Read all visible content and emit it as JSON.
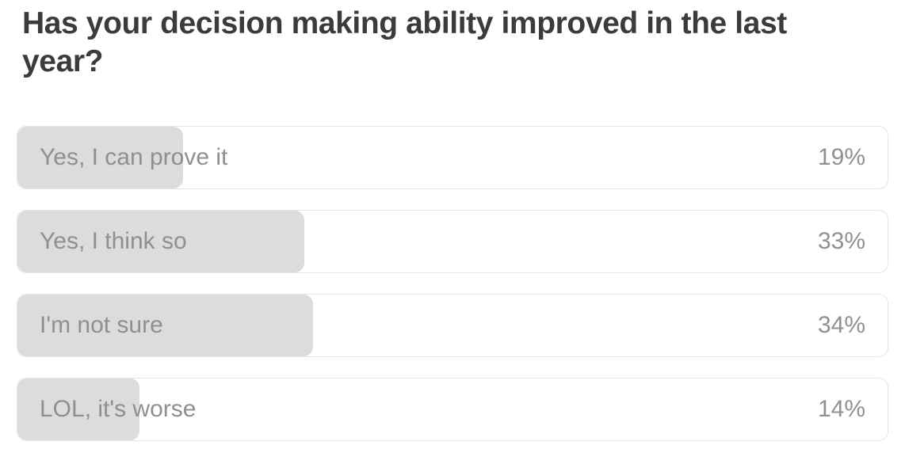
{
  "poll": {
    "question": "Has your decision making ability improved in the last year?",
    "options": [
      {
        "label": "Yes, I can prove it",
        "percent": 19,
        "percent_label": "19%"
      },
      {
        "label": "Yes, I think so",
        "percent": 33,
        "percent_label": "33%"
      },
      {
        "label": "I'm not sure",
        "percent": 34,
        "percent_label": "34%"
      },
      {
        "label": "LOL, it's worse",
        "percent": 14,
        "percent_label": "14%"
      }
    ]
  },
  "chart_data": {
    "type": "bar",
    "orientation": "horizontal",
    "title": "Has your decision making ability improved in the last year?",
    "categories": [
      "Yes, I can prove it",
      "Yes, I think so",
      "I'm not sure",
      "LOL, it's worse"
    ],
    "values": [
      19,
      33,
      34,
      14
    ],
    "value_labels": [
      "19%",
      "33%",
      "34%",
      "14%"
    ],
    "unit": "%",
    "xlim": [
      0,
      100
    ],
    "grid": false,
    "legend": false
  },
  "colors": {
    "title_text": "#3b3b3b",
    "option_text": "#8f8f8f",
    "percent_text": "#909090",
    "bar_fill": "#dcdcdc",
    "row_border": "#e5e5e5",
    "background": "#ffffff"
  }
}
